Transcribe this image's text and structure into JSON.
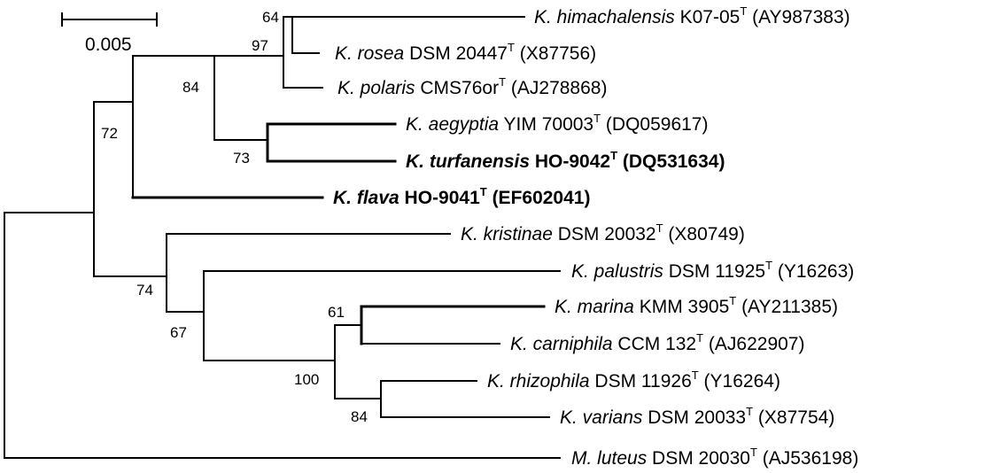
{
  "scale_bar": {
    "label": "0.005"
  },
  "taxa": [
    {
      "genus_species": "K. himachalensis",
      "strain": "K07-05",
      "type_mark": "T",
      "accession": "(AY987383)",
      "bold": false
    },
    {
      "genus_species": "K. rosea",
      "strain": "DSM 20447",
      "type_mark": "T",
      "accession": "(X87756)",
      "bold": false
    },
    {
      "genus_species": "K. polaris",
      "strain": "CMS76or",
      "type_mark": "T",
      "accession": "(AJ278868)",
      "bold": false
    },
    {
      "genus_species": "K. aegyptia",
      "strain": "YIM 70003",
      "type_mark": "T",
      "accession": "(DQ059617)",
      "bold": false
    },
    {
      "genus_species": "K. turfanensis",
      "strain": "HO-9042",
      "type_mark": "T",
      "accession": "(DQ531634)",
      "bold": true
    },
    {
      "genus_species": "K. flava",
      "strain": "HO-9041",
      "type_mark": "T",
      "accession": "(EF602041)",
      "bold": true
    },
    {
      "genus_species": "K. kristinae",
      "strain": "DSM 20032",
      "type_mark": "T",
      "accession": "(X80749)",
      "bold": false
    },
    {
      "genus_species": "K. palustris",
      "strain": "DSM 11925",
      "type_mark": "T",
      "accession": "(Y16263)",
      "bold": false
    },
    {
      "genus_species": "K. marina",
      "strain": "KMM 3905",
      "type_mark": "T",
      "accession": "(AY211385)",
      "bold": false
    },
    {
      "genus_species": "K. carniphila",
      "strain": "CCM 132",
      "type_mark": "T",
      "accession": "(AJ622907)",
      "bold": false
    },
    {
      "genus_species": "K. rhizophila",
      "strain": "DSM 11926",
      "type_mark": "T",
      "accession": "(Y16264)",
      "bold": false
    },
    {
      "genus_species": "K. varians",
      "strain": "DSM 20033",
      "type_mark": "T",
      "accession": "(X87754)",
      "bold": false
    },
    {
      "genus_species": "M. luteus",
      "strain": "DSM 20030",
      "type_mark": "T",
      "accession": "(AJ536198)",
      "bold": false
    }
  ],
  "bootstrap": {
    "himachalensis_rosea": "64",
    "polaris_group": "97",
    "upper_clade": "84",
    "aegyptia_turfanensis": "73",
    "flava_group": "72",
    "lower_clade": "74",
    "palustris_group": "67",
    "marina_carniphila": "61",
    "marina_to_varians": "100",
    "rhizophila_varians": "84"
  }
}
